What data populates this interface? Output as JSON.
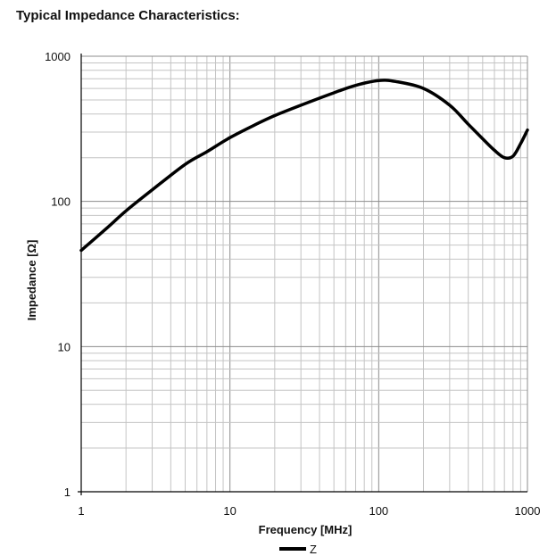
{
  "chart_data": {
    "type": "line",
    "title": "Typical Impedance Characteristics:",
    "xlabel": "Frequency  [MHz]",
    "ylabel": "Impedance [Ω]",
    "x_scale": "log",
    "y_scale": "log",
    "xlim": [
      1,
      1000
    ],
    "ylim": [
      1,
      1000
    ],
    "grid": true,
    "legend_position": "bottom-center",
    "x_ticks": [
      "1",
      "10",
      "100",
      "1000"
    ],
    "y_ticks": [
      "1000",
      "100",
      "10",
      "1"
    ],
    "series": [
      {
        "name": "Z",
        "color": "#000000",
        "x": [
          1,
          1.5,
          2,
          3,
          5,
          7,
          10,
          15,
          20,
          30,
          50,
          70,
          100,
          130,
          200,
          300,
          400,
          500,
          600,
          700,
          800,
          900,
          1000
        ],
        "y": [
          46,
          66,
          86,
          120,
          180,
          220,
          275,
          340,
          390,
          460,
          560,
          630,
          680,
          670,
          600,
          460,
          340,
          270,
          225,
          200,
          205,
          250,
          310
        ]
      }
    ]
  }
}
